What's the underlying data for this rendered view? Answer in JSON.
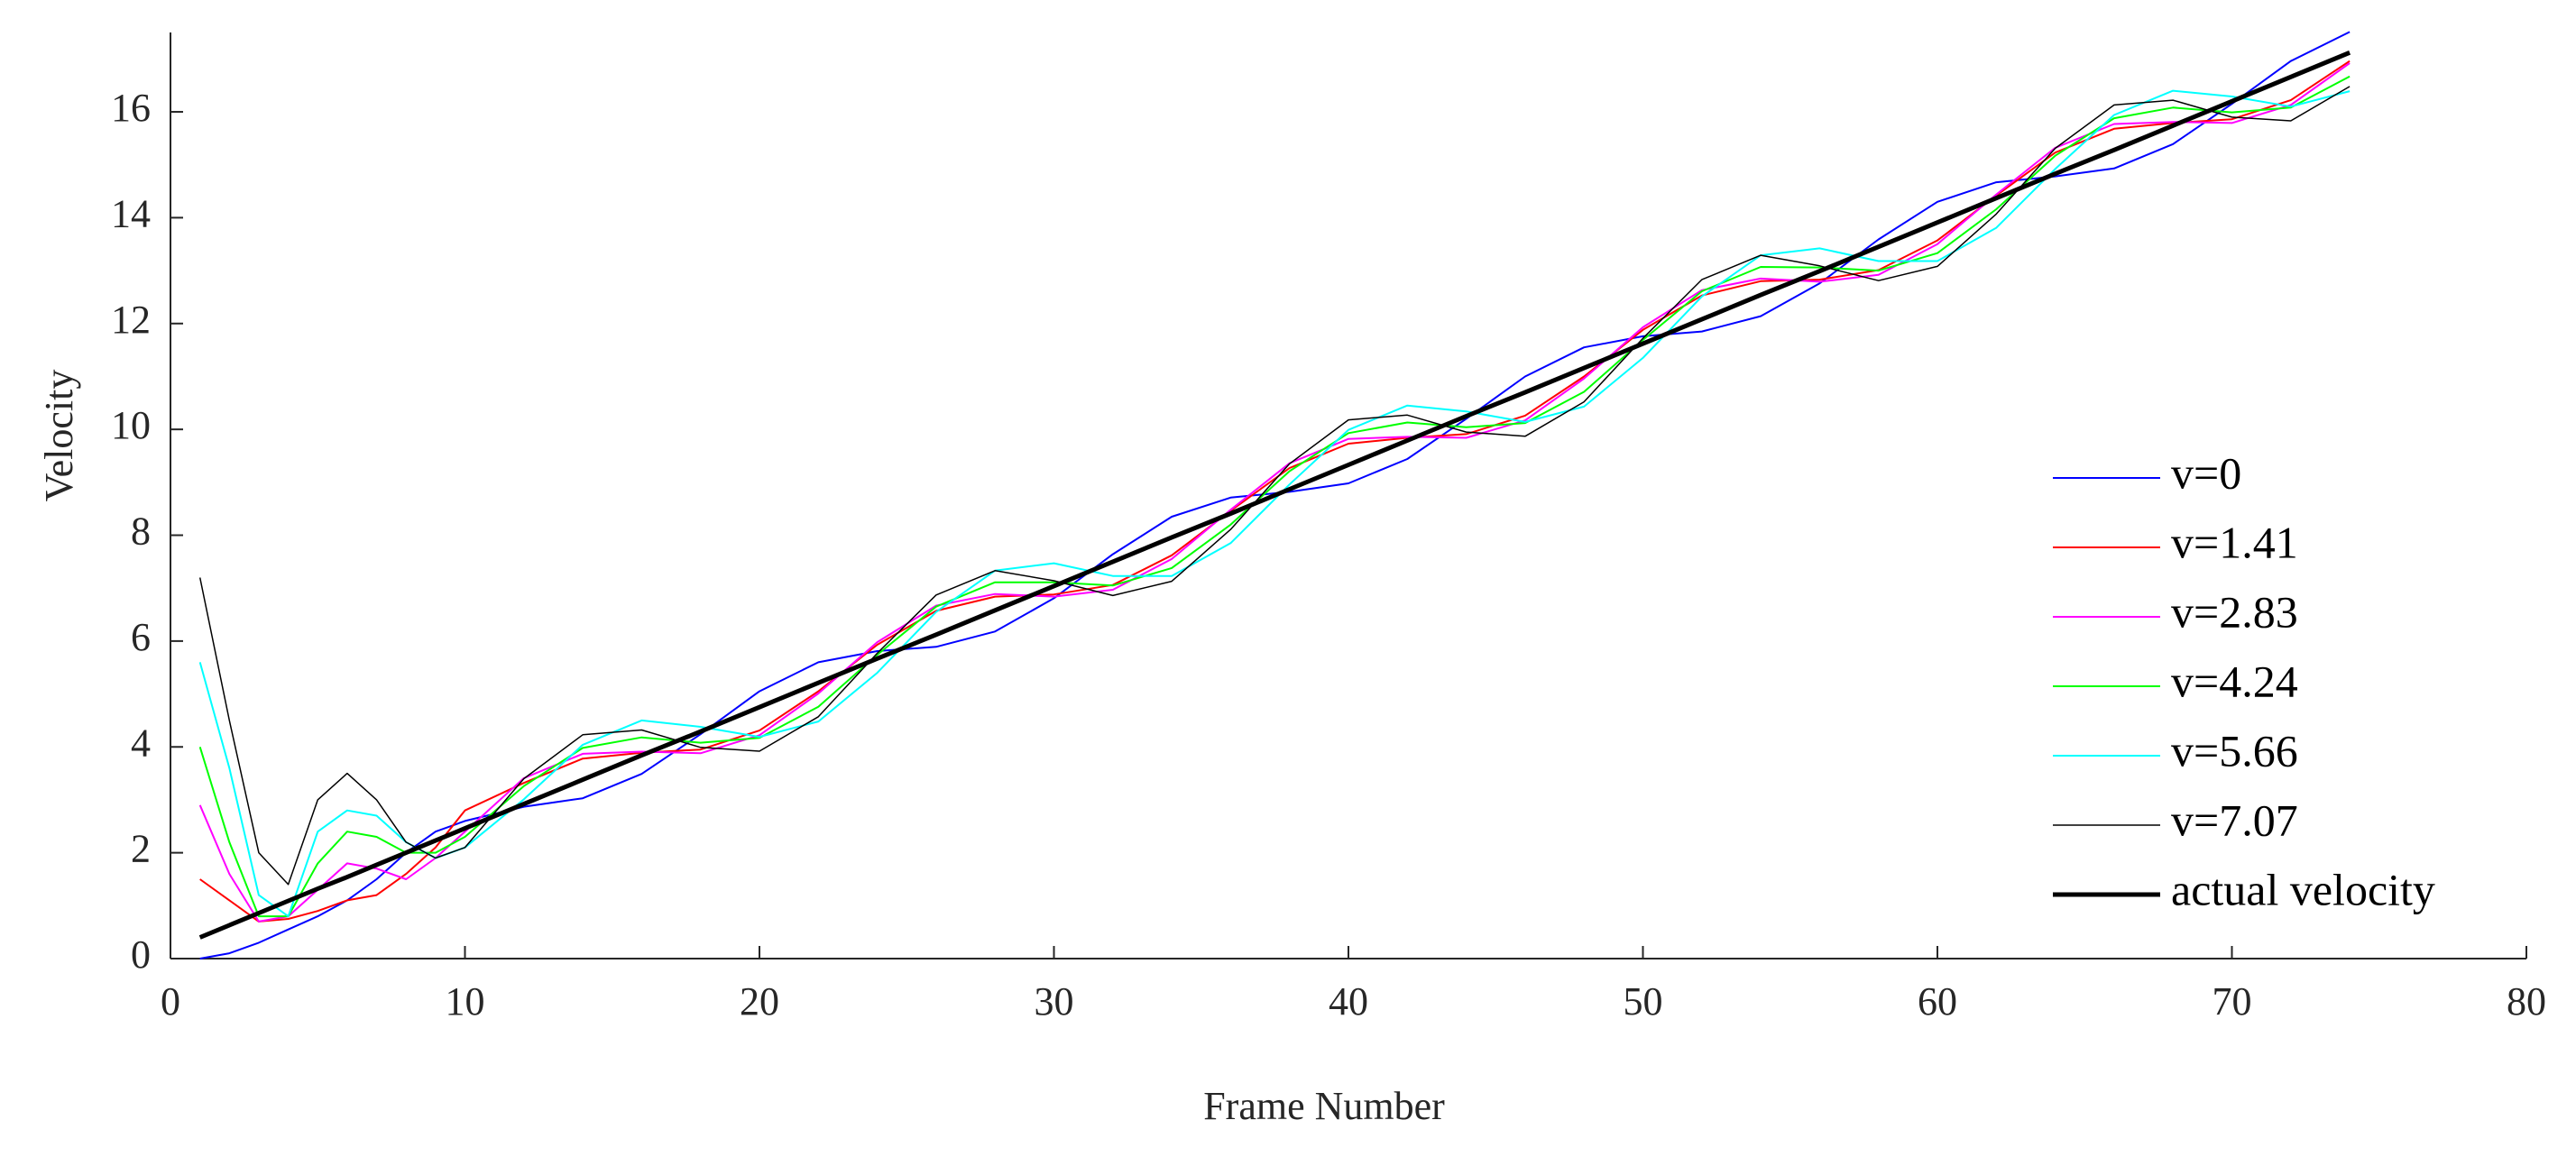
{
  "chart_data": {
    "type": "line",
    "x_label": "Frame Number",
    "y_label": "Velocity",
    "x": [
      1,
      2,
      3,
      4,
      5,
      6,
      7,
      8,
      9,
      10,
      12,
      14,
      16,
      18,
      20,
      22,
      24,
      26,
      28,
      30,
      32,
      34,
      36,
      38,
      40,
      42,
      44,
      46,
      48,
      50,
      52,
      54,
      56,
      58,
      60,
      62,
      64,
      66,
      68,
      70,
      72,
      74
    ],
    "series": [
      {
        "name": "v=0",
        "color": "#0000ff",
        "line_width": 2,
        "values": [
          0,
          0.1,
          0.3,
          0.55,
          0.8,
          1.1,
          1.5,
          2.0,
          2.4,
          2.6,
          2.87,
          3.03,
          3.49,
          4.24,
          5.05,
          5.6,
          5.81,
          5.89,
          6.18,
          6.81,
          7.64,
          8.35,
          8.71,
          8.82,
          8.98,
          9.44,
          10.2,
          11.0,
          11.55,
          11.76,
          11.85,
          12.14,
          12.76,
          13.59,
          14.3,
          14.67,
          14.78,
          14.93,
          15.39,
          16.15,
          16.96,
          17.51
        ]
      },
      {
        "name": "v=1.41",
        "color": "#ff0000",
        "line_width": 2,
        "values": [
          1.5,
          1.1,
          0.7,
          0.75,
          0.9,
          1.1,
          1.2,
          1.6,
          2.1,
          2.8,
          3.32,
          3.78,
          3.89,
          3.95,
          4.31,
          5.05,
          5.93,
          6.57,
          6.84,
          6.88,
          7.06,
          7.62,
          8.46,
          9.27,
          9.73,
          9.84,
          9.91,
          10.26,
          11.0,
          11.88,
          12.53,
          12.8,
          12.83,
          13.01,
          13.57,
          14.42,
          15.23,
          15.68,
          15.79,
          15.86,
          16.22,
          16.96
        ]
      },
      {
        "name": "v=2.83",
        "color": "#ff00ff",
        "line_width": 2,
        "values": [
          2.9,
          1.6,
          0.7,
          0.8,
          1.3,
          1.8,
          1.7,
          1.5,
          1.9,
          2.4,
          3.41,
          3.87,
          3.91,
          3.88,
          4.22,
          5.01,
          5.98,
          6.67,
          6.89,
          6.84,
          6.97,
          7.55,
          8.48,
          9.36,
          9.82,
          9.86,
          9.84,
          10.17,
          10.96,
          11.93,
          12.63,
          12.85,
          12.79,
          12.92,
          13.5,
          14.44,
          15.32,
          15.77,
          15.81,
          15.79,
          16.13,
          16.92
        ]
      },
      {
        "name": "v=4.24",
        "color": "#00ff00",
        "line_width": 2,
        "values": [
          4.0,
          2.2,
          0.8,
          0.8,
          1.8,
          2.4,
          2.3,
          2.0,
          2.0,
          2.3,
          3.26,
          3.98,
          4.18,
          4.08,
          4.17,
          4.76,
          5.74,
          6.65,
          7.11,
          7.11,
          7.05,
          7.38,
          8.2,
          9.21,
          9.93,
          10.13,
          10.04,
          10.12,
          10.71,
          11.69,
          12.61,
          13.07,
          13.06,
          13.0,
          13.33,
          14.16,
          15.17,
          15.88,
          16.08,
          15.99,
          16.08,
          16.67
        ]
      },
      {
        "name": "v=5.66",
        "color": "#00ffff",
        "line_width": 2,
        "values": [
          5.6,
          3.6,
          1.2,
          0.8,
          2.4,
          2.8,
          2.7,
          2.2,
          1.9,
          2.1,
          3.01,
          4.04,
          4.5,
          4.38,
          4.19,
          4.48,
          5.4,
          6.55,
          7.33,
          7.47,
          7.23,
          7.23,
          7.85,
          8.96,
          9.99,
          10.45,
          10.34,
          10.14,
          10.43,
          11.35,
          12.51,
          13.29,
          13.42,
          13.18,
          13.18,
          13.81,
          14.92,
          15.94,
          16.4,
          16.29,
          16.1,
          16.39
        ]
      },
      {
        "name": "v=7.07",
        "color": "#000000",
        "line_width": 1.5,
        "values": [
          7.2,
          4.5,
          2.0,
          1.4,
          3.0,
          3.5,
          3.0,
          2.2,
          1.9,
          2.1,
          3.4,
          4.23,
          4.32,
          3.99,
          3.92,
          4.57,
          5.77,
          6.87,
          7.33,
          7.14,
          6.86,
          7.13,
          8.11,
          9.35,
          10.18,
          10.27,
          9.95,
          9.87,
          10.52,
          11.72,
          12.83,
          13.29,
          13.09,
          12.81,
          13.08,
          14.07,
          15.31,
          16.13,
          16.22,
          15.9,
          15.83,
          16.48
        ]
      },
      {
        "name": "actual velocity",
        "color": "#000000",
        "line_width": 5,
        "values": [
          0.4,
          0.63,
          0.86,
          1.09,
          1.32,
          1.54,
          1.77,
          2.0,
          2.23,
          2.46,
          2.92,
          3.38,
          3.84,
          4.29,
          4.75,
          5.21,
          5.67,
          6.12,
          6.58,
          7.04,
          7.5,
          7.96,
          8.41,
          8.87,
          9.33,
          9.79,
          10.25,
          10.7,
          11.16,
          11.62,
          12.08,
          12.54,
          12.99,
          13.45,
          13.91,
          14.37,
          14.83,
          15.28,
          15.74,
          16.2,
          16.66,
          17.12
        ]
      }
    ],
    "xlim": [
      0,
      80
    ],
    "xticks": [
      0,
      10,
      20,
      30,
      40,
      50,
      60,
      70,
      80
    ],
    "ylim": [
      0,
      17.5
    ],
    "yticks": [
      0,
      2,
      4,
      6,
      8,
      10,
      12,
      14,
      16
    ],
    "grid": false,
    "legend": "lower right"
  }
}
